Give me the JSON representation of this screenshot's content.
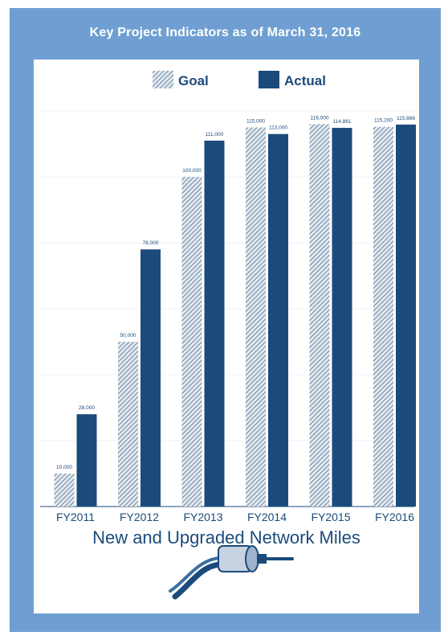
{
  "chart_data": {
    "type": "bar",
    "title": "Key Project Indicators as of March 31,  2016",
    "xlabel": "New and Upgraded Network Miles",
    "ylabel": "",
    "categories": [
      "FY2011",
      "FY2012",
      "FY2013",
      "FY2014",
      "FY2015",
      "FY2016"
    ],
    "series": [
      {
        "name": "Goal",
        "values": [
          10000,
          50000,
          100000,
          115000,
          116000,
          115200
        ],
        "labels": [
          "10,000",
          "50,000",
          "100,000",
          "115,000",
          "116,000",
          "115,200"
        ]
      },
      {
        "name": "Actual",
        "values": [
          28000,
          78000,
          111000,
          113000,
          114861,
          115866
        ],
        "labels": [
          "28,000",
          "78,000",
          "111,000",
          "113,000",
          "114,861",
          "115,866"
        ]
      }
    ],
    "ylim": [
      0,
      125000
    ],
    "grid": true,
    "legend_position": "top-center",
    "colors": {
      "goal": "#b9c4d2",
      "goal_hatch": "#4a6f96",
      "actual": "#1b4b7b",
      "frame": "#6f9fd2",
      "text": "#1b4b7b"
    }
  },
  "graphic": {
    "icon": "network-cable-icon"
  }
}
